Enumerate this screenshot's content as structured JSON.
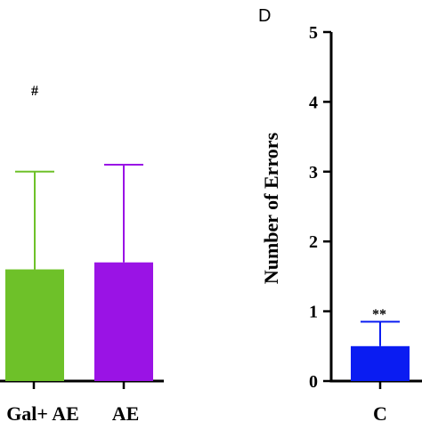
{
  "panel_d_label": "D",
  "chart_data": [
    {
      "type": "bar",
      "categories": [
        "Gal+ AE",
        "AE"
      ],
      "values": [
        1.6,
        1.7
      ],
      "error_upper": [
        3.0,
        3.1
      ],
      "annotations": [
        "#",
        ""
      ],
      "colors": [
        "#6ec129",
        "#9a13e5"
      ],
      "partial": true
    },
    {
      "type": "bar",
      "categories": [
        "C"
      ],
      "values": [
        0.5
      ],
      "error_upper": [
        0.85
      ],
      "annotations": [
        "**"
      ],
      "colors": [
        "#0a1cf2"
      ],
      "xlabel": "",
      "ylabel": "Number of Errors",
      "ylim": [
        0,
        5
      ],
      "yticks": [
        "0",
        "1",
        "2",
        "3",
        "4",
        "5"
      ],
      "grid": false
    }
  ]
}
